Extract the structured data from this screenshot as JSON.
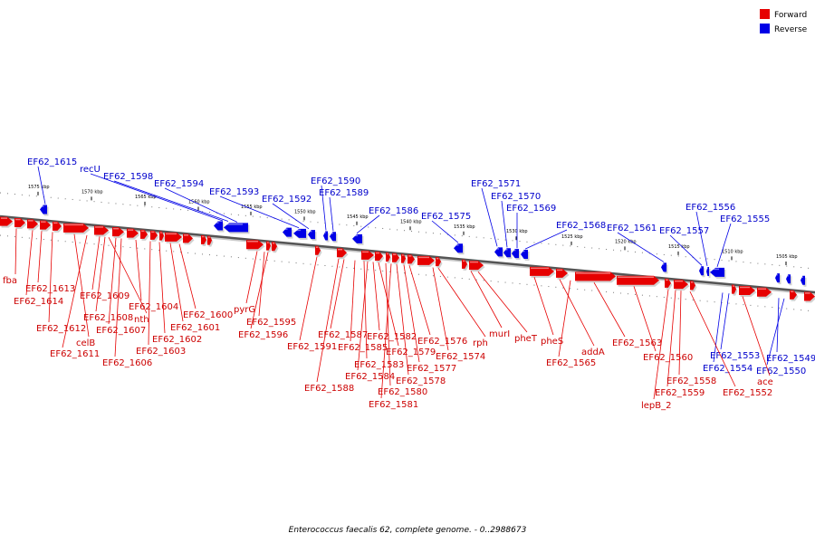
{
  "caption": "Enterococcus faecalis 62, complete genome. - 0..2988673",
  "legend": [
    {
      "label": "Forward",
      "color": "#e60000"
    },
    {
      "label": "Reverse",
      "color": "#0000e6"
    }
  ],
  "scale_ticks": [
    "1575 kbp",
    "1570 kbp",
    "1565 kbp",
    "1560 kbp",
    "1555 kbp",
    "1550 kbp",
    "1545 kbp",
    "1540 kbp",
    "1535 kbp",
    "1530 kbp",
    "1525 kbp",
    "1520 kbp",
    "1515 kbp",
    "1510 kbp",
    "1505 kbp"
  ],
  "reverse_genes": [
    "EF62_1615",
    "recU",
    "EF62_1598",
    "EF62_1594",
    "EF62_1593",
    "EF62_1592",
    "EF62_1590",
    "EF62_1589",
    "EF62_1586",
    "EF62_1575",
    "EF62_1571",
    "EF62_1570",
    "EF62_1569",
    "EF62_1568",
    "EF62_1561",
    "EF62_1557",
    "EF62_1556",
    "EF62_1555",
    "EF62_1553",
    "EF62_1554",
    "EF62_1549",
    "EF62_1550"
  ],
  "forward_genes": [
    "fba",
    "EF62_1613",
    "EF62_1614",
    "EF62_1612",
    "celB",
    "EF62_1611",
    "EF62_1609",
    "EF62_1608",
    "nth",
    "EF62_1607",
    "EF62_1604",
    "EF62_1606",
    "EF62_1603",
    "EF62_1602",
    "EF62_1601",
    "EF62_1600",
    "pyrG",
    "EF62_1595",
    "EF62_1596",
    "EF62_1591",
    "EF62_1588",
    "EF62_1587",
    "EF62_1585",
    "EF62_1583",
    "EF62_1584",
    "EF62_1582",
    "EF62_1579",
    "EF62_1580",
    "EF62_1581",
    "EF62_1578",
    "EF62_1577",
    "EF62_1576",
    "EF62_1574",
    "rph",
    "murI",
    "pheT",
    "pheS",
    "EF62_1565",
    "addA",
    "EF62_1563",
    "EF62_1560",
    "lepB_2",
    "EF62_1559",
    "EF62_1558",
    "EF62_1552",
    "ace"
  ]
}
